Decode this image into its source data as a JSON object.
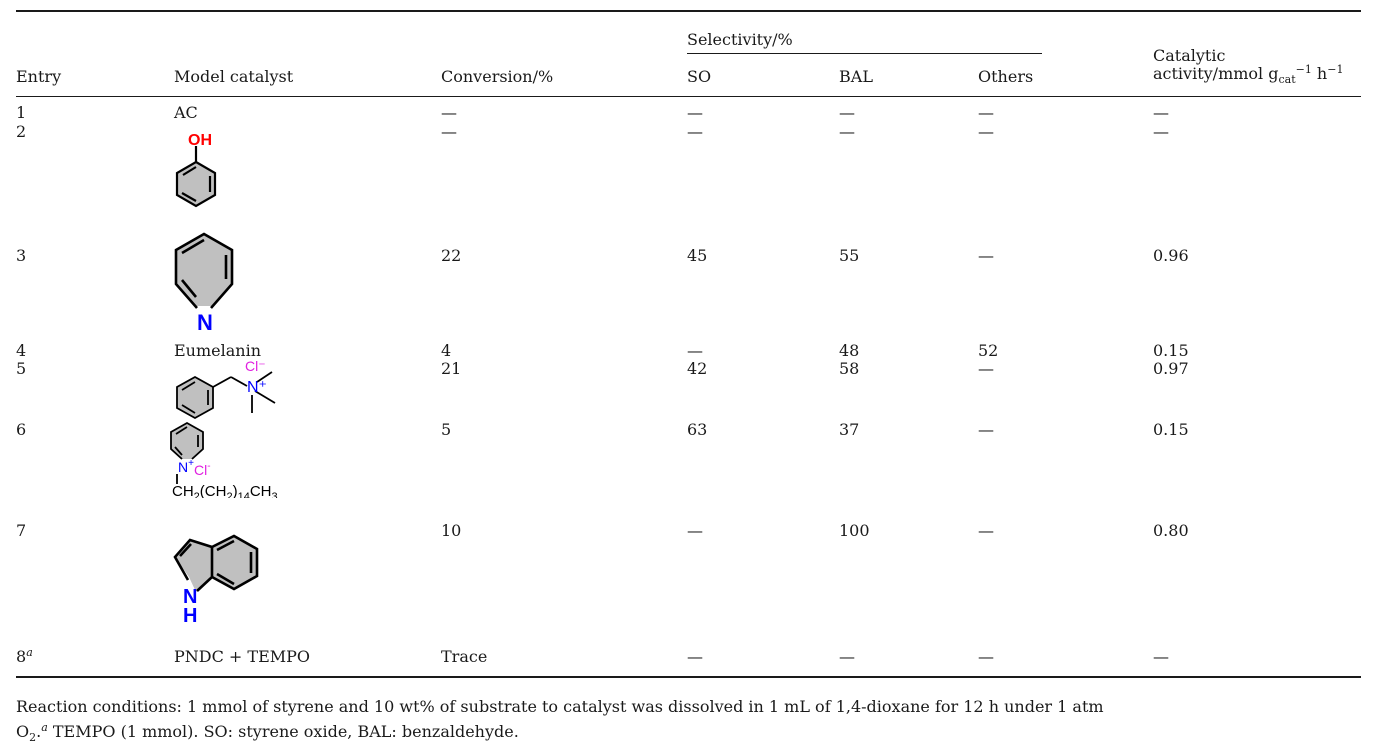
{
  "table": {
    "headers": {
      "entry": "Entry",
      "model_catalyst": "Model catalyst",
      "conversion": "Conversion/%",
      "selectivity_group": "Selectivity/%",
      "so": "SO",
      "bal": "BAL",
      "others": "Others",
      "activity_line1": "Catalytic",
      "activity_line2": "activity/mmol g",
      "activity_sub": "cat",
      "activity_exp1": "−1",
      "activity_mid": " h",
      "activity_exp2": "−1"
    },
    "rows": [
      {
        "entry": "1",
        "catalyst": "AC",
        "conversion": "—",
        "so": "—",
        "bal": "—",
        "others": "—",
        "activity": "—"
      },
      {
        "entry": "2",
        "catalyst_structure": "phenol",
        "conversion": "—",
        "so": "—",
        "bal": "—",
        "others": "—",
        "activity": "—"
      },
      {
        "entry": "3",
        "catalyst_structure": "pyridine",
        "conversion": "22",
        "so": "45",
        "bal": "55",
        "others": "—",
        "activity": "0.96"
      },
      {
        "entry": "4",
        "catalyst": "Eumelanin",
        "conversion": "4",
        "so": "—",
        "bal": "48",
        "others": "52",
        "activity": "0.15"
      },
      {
        "entry": "5",
        "catalyst_structure": "benzyltrimethylammonium chloride",
        "conversion": "21",
        "so": "42",
        "bal": "58",
        "others": "—",
        "activity": "0.97"
      },
      {
        "entry": "6",
        "catalyst_structure": "cetylpyridinium chloride",
        "conversion": "5",
        "so": "63",
        "bal": "37",
        "others": "—",
        "activity": "0.15"
      },
      {
        "entry": "7",
        "catalyst_structure": "indole",
        "conversion": "10",
        "so": "—",
        "bal": "100",
        "others": "—",
        "activity": "0.80"
      },
      {
        "entry": "8",
        "entry_sup": "a",
        "catalyst": "PNDC + TEMPO",
        "conversion": "Trace",
        "so": "—",
        "bal": "—",
        "others": "—",
        "activity": "—"
      }
    ]
  },
  "structure_labels": {
    "oh": "OH",
    "n": "N",
    "cl_minus": "Cl⁻",
    "n_plus": "N⁺",
    "cl": "Cl",
    "minus": "-",
    "plus": "+",
    "chain_a": "CH",
    "chain_b": "2",
    "chain_c": "(CH",
    "chain_d": "2",
    "chain_e": ")",
    "chain_f": "14",
    "chain_g": "CH",
    "chain_h": "3",
    "nh_n": "N",
    "nh_h": "H"
  },
  "footnote": {
    "line1": "Reaction conditions: 1 mmol of styrene and 10 wt% of substrate to catalyst was dissolved in 1 mL of 1,4-dioxane for 12 h under 1 atm",
    "o": "O",
    "o_sub": "2",
    "dot": ".",
    "sup_a": "a",
    "rest": " TEMPO (1 mmol). SO: styrene oxide, BAL: benzaldehyde."
  },
  "colors": {
    "oxygen": "#ff0000",
    "nitrogen": "#0000ff",
    "chloride": "#e020e0",
    "ring_fill": "#c0c0c0",
    "rule": "#1a1a1a"
  }
}
